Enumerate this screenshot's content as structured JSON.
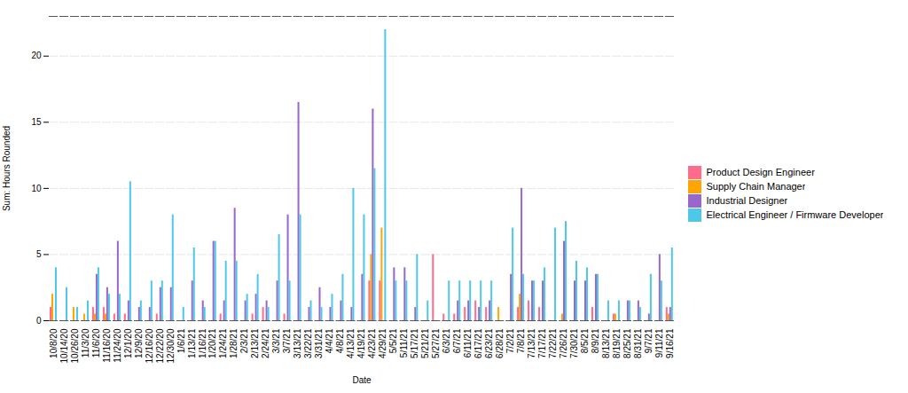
{
  "chart_data": {
    "type": "bar",
    "xlabel": "Date",
    "ylabel": "Sum: Hours Rounded",
    "categories": [
      "10/8/20",
      "10/14/20",
      "10/26/20",
      "11/3/20",
      "11/6/20",
      "11/16/20",
      "11/24/20",
      "12/1/20",
      "12/9/20",
      "12/16/20",
      "12/22/20",
      "12/30/20",
      "1/6/21",
      "1/13/21",
      "1/16/21",
      "1/20/21",
      "1/24/21",
      "1/28/21",
      "2/3/21",
      "2/13/21",
      "2/24/21",
      "3/3/21",
      "3/7/21",
      "3/13/21",
      "3/22/21",
      "3/31/21",
      "4/4/21",
      "4/8/21",
      "4/13/21",
      "4/19/21",
      "4/23/21",
      "4/29/21",
      "5/5/21",
      "5/11/21",
      "5/17/21",
      "5/21/21",
      "5/27/21",
      "6/3/21",
      "6/7/21",
      "6/11/21",
      "6/17/21",
      "6/23/21",
      "6/28/21",
      "7/2/21",
      "7/8/21",
      "7/13/21",
      "7/17/21",
      "7/22/21",
      "7/26/21",
      "7/30/21",
      "8/5/21",
      "8/9/21",
      "8/13/21",
      "8/19/21",
      "8/25/21",
      "8/31/21",
      "9/7/21",
      "9/11/21",
      "9/16/21"
    ],
    "series": [
      {
        "name": "Product Design Engineer",
        "color": "#FF6B8A",
        "values": [
          1,
          0,
          0,
          0,
          1,
          1,
          0.5,
          0.5,
          0,
          0,
          0.5,
          0,
          0,
          0,
          0,
          0,
          0.5,
          0,
          0,
          0.5,
          1,
          0,
          0.5,
          0,
          0,
          0,
          0,
          0,
          0,
          0,
          3,
          3,
          0,
          0,
          0,
          0,
          5,
          0.5,
          0.5,
          1,
          1.5,
          1,
          0,
          0,
          1,
          1.5,
          1,
          0,
          0,
          0,
          0,
          1,
          0,
          0.5,
          0,
          0,
          0,
          0,
          1
        ]
      },
      {
        "name": "Supply Chain Manager",
        "color": "#FFA500",
        "values": [
          2,
          0,
          1,
          0.5,
          0.5,
          0.5,
          0,
          0,
          0,
          0,
          0,
          0,
          0,
          0,
          0,
          0,
          0,
          0,
          0,
          0,
          0,
          0,
          0,
          0,
          0,
          0,
          0,
          0,
          0,
          0,
          5,
          7,
          0,
          0,
          0,
          0,
          0,
          0,
          0,
          0,
          0,
          0,
          1,
          0,
          2,
          0,
          0,
          0,
          0.5,
          0,
          0,
          0,
          0,
          0.5,
          0,
          0,
          0,
          0,
          0.5
        ]
      },
      {
        "name": "Industrial Designer",
        "color": "#9966CC",
        "values": [
          0,
          0,
          0,
          0,
          3.5,
          2.5,
          6,
          1.5,
          1,
          1,
          2.5,
          2.5,
          0,
          3,
          1.5,
          6,
          1.5,
          8.5,
          1.5,
          2,
          1.5,
          3,
          8,
          16.5,
          1,
          2.5,
          1,
          1.5,
          1,
          3.5,
          16,
          0,
          4,
          4,
          1,
          0,
          0,
          0,
          1.5,
          1.5,
          1,
          1.5,
          0,
          3.5,
          10,
          3,
          3,
          0,
          6,
          3,
          3,
          3.5,
          0,
          0,
          1.5,
          1.5,
          0.5,
          5,
          1
        ]
      },
      {
        "name": "Electrical Engineer / Firmware Developer",
        "color": "#4DC8E8",
        "values": [
          4,
          2.5,
          1,
          1.5,
          4,
          2,
          2,
          10.5,
          1.5,
          3,
          3,
          8,
          1,
          5.5,
          1,
          6,
          4.5,
          4.5,
          2,
          3.5,
          1,
          6.5,
          3,
          8,
          1.5,
          1,
          2,
          3.5,
          10,
          8,
          11.5,
          22,
          3,
          3,
          5,
          1.5,
          0,
          3,
          3,
          3,
          3,
          3,
          0,
          7,
          3.5,
          3,
          4,
          7,
          7.5,
          4.5,
          4,
          3.5,
          1.5,
          1.5,
          1.5,
          1,
          3.5,
          3,
          5.5
        ]
      }
    ],
    "ylim": [
      0,
      23
    ],
    "yticks": [
      0,
      5,
      10,
      15,
      20
    ],
    "grid": true,
    "legend": "right"
  }
}
